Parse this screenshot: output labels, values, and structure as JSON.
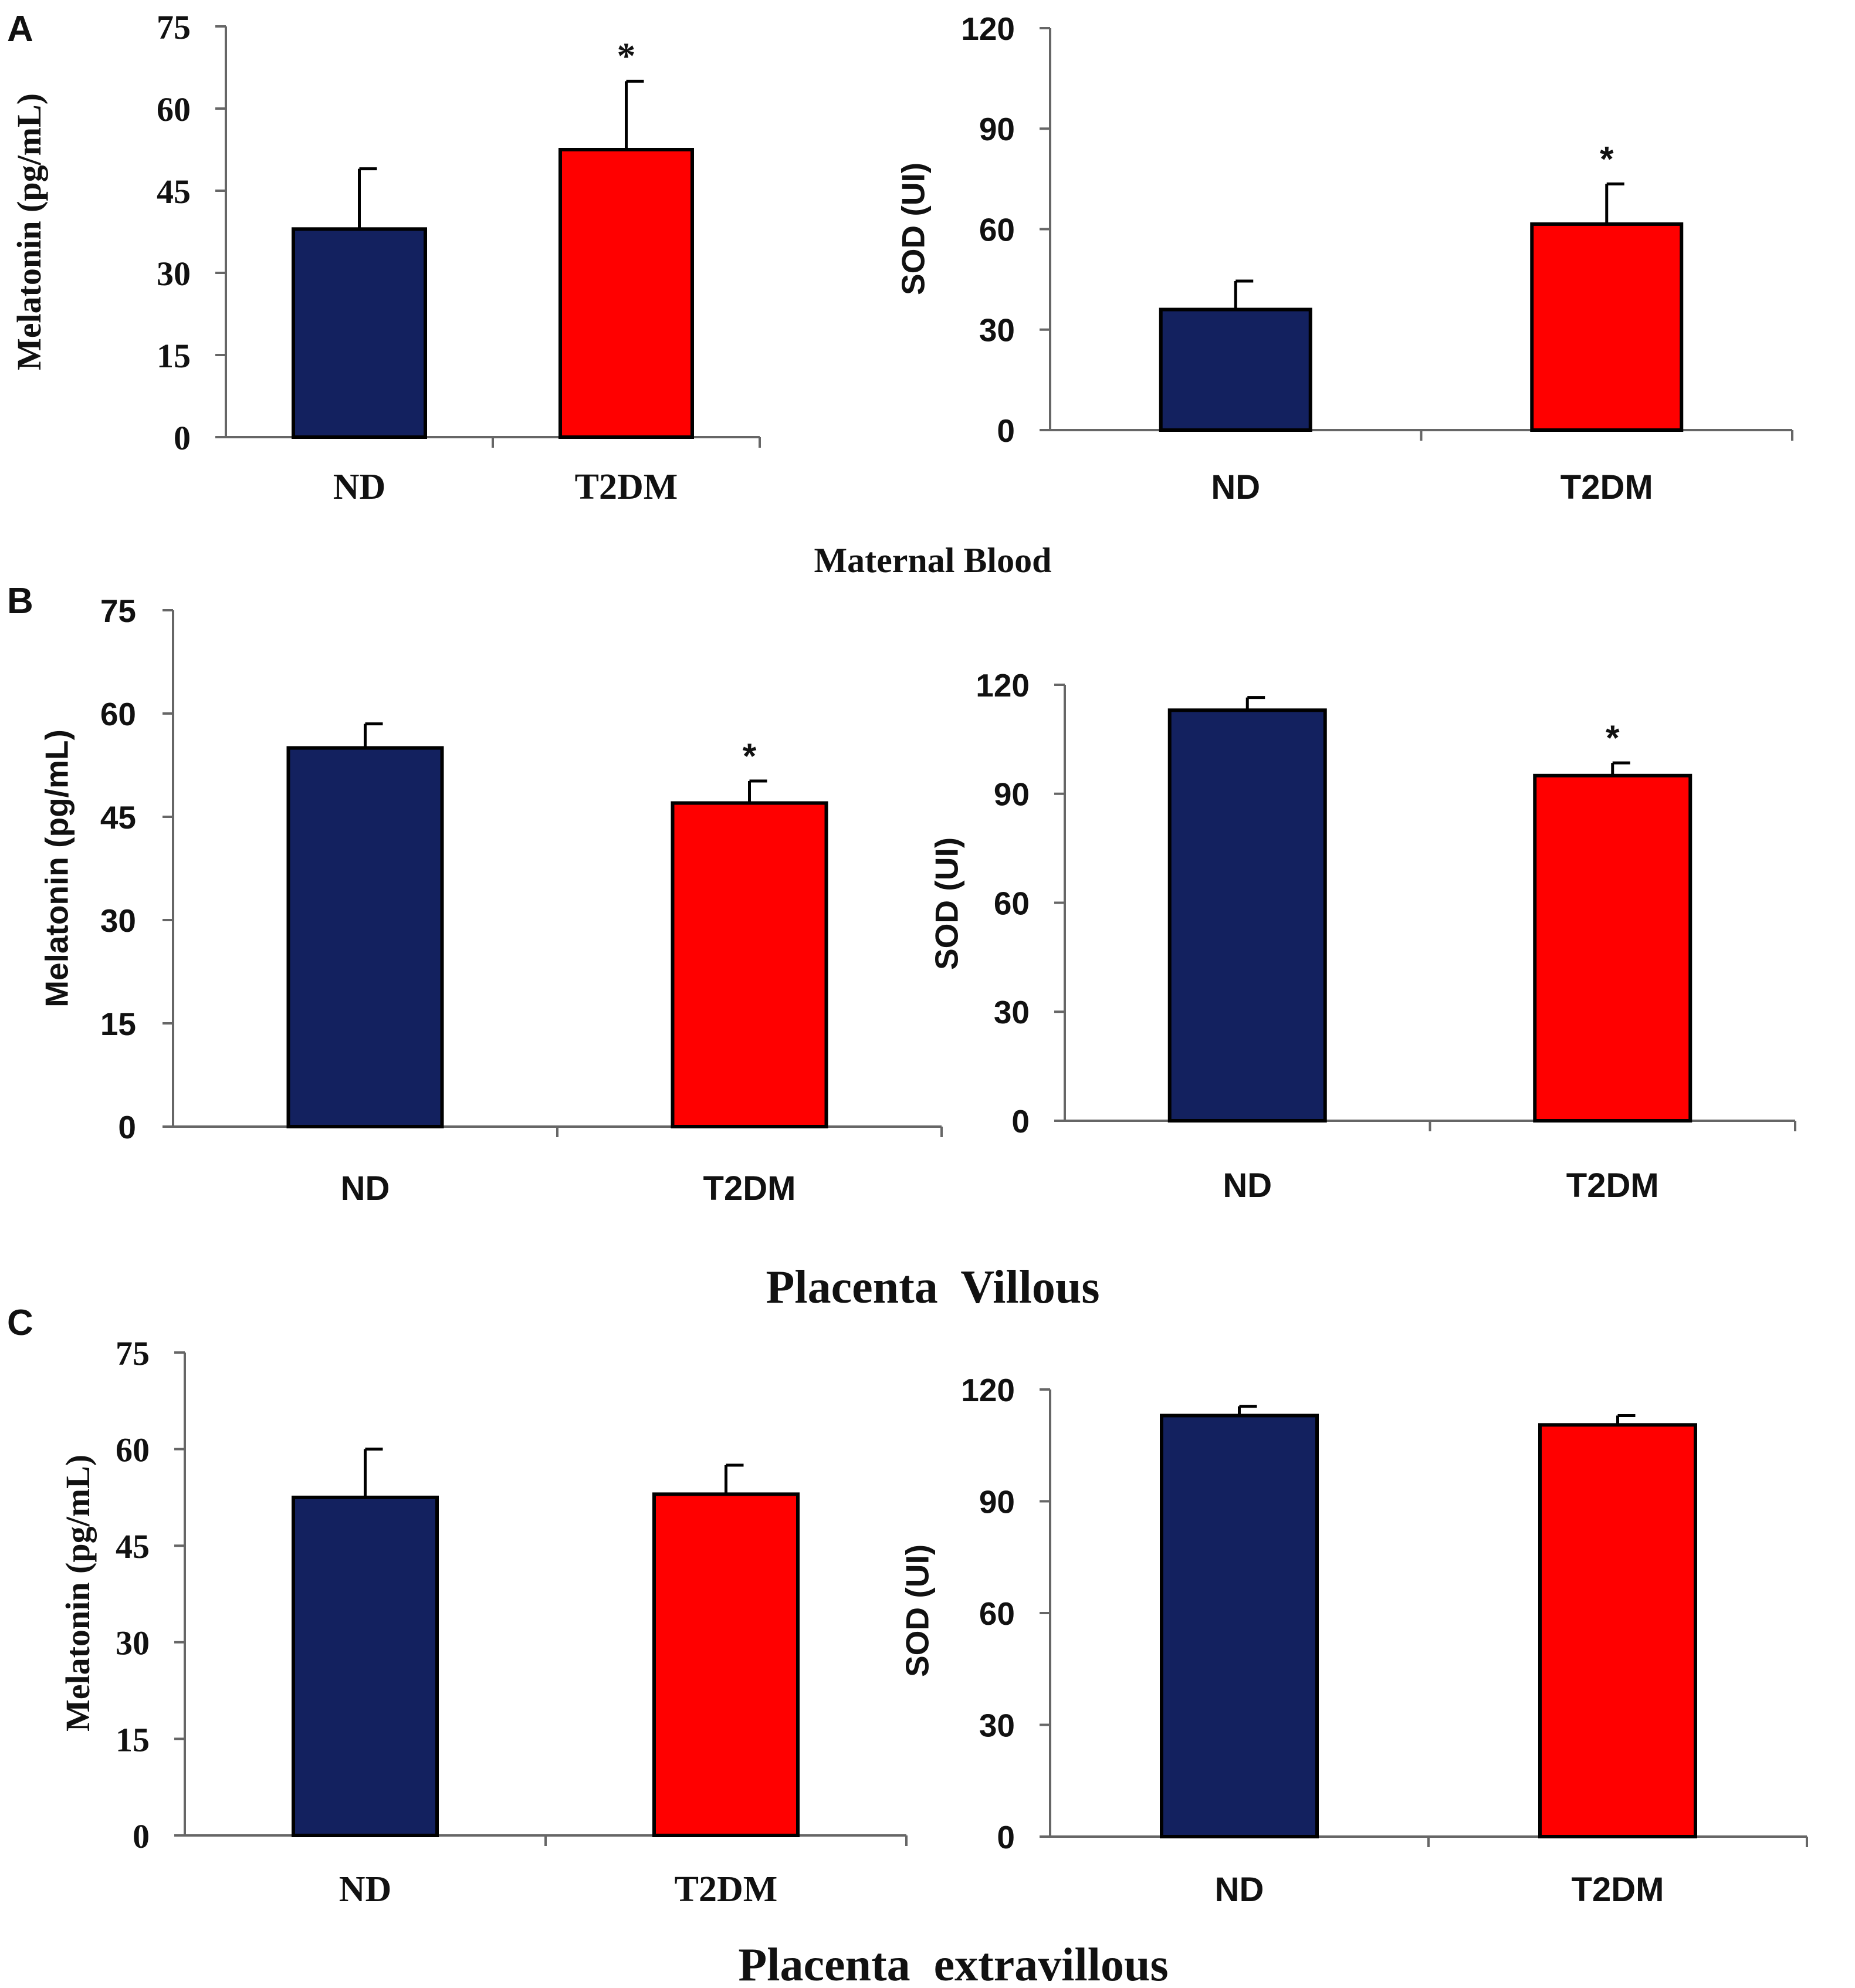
{
  "figure": {
    "colors": {
      "ND": "#13215f",
      "T2DM": "#ff0000",
      "axis": "#666666",
      "text": "#111111"
    },
    "panels": [
      {
        "letter": "A",
        "title": "Maternal Blood"
      },
      {
        "letter": "B",
        "title": "Placenta  Villous"
      },
      {
        "letter": "C",
        "title": "Placenta  extravillous"
      }
    ]
  },
  "chart_data": [
    {
      "type": "bar",
      "panel": "A",
      "font": "serif",
      "ylabel": "Melatonin  (pg/mL)",
      "ylim": [
        0,
        75
      ],
      "yticks": [
        0,
        15,
        30,
        45,
        60,
        75
      ],
      "categories": [
        "ND",
        "T2DM"
      ],
      "values": [
        38,
        52.5
      ],
      "errors": [
        11,
        12.5
      ],
      "significance": [
        "",
        "*"
      ]
    },
    {
      "type": "bar",
      "panel": "A",
      "font": "sans",
      "ylabel": "SOD (UI)",
      "ylim": [
        0,
        120
      ],
      "yticks": [
        0,
        30,
        60,
        90,
        120
      ],
      "categories": [
        "ND",
        "T2DM"
      ],
      "values": [
        36,
        61.5
      ],
      "errors": [
        8.5,
        12
      ],
      "significance": [
        "",
        "*"
      ]
    },
    {
      "type": "bar",
      "panel": "B",
      "font": "sans",
      "ylabel": "Melatonin  (pg/mL)",
      "ylim": [
        0,
        75
      ],
      "yticks": [
        0,
        15,
        30,
        45,
        60,
        75
      ],
      "categories": [
        "ND",
        "T2DM"
      ],
      "values": [
        55,
        47
      ],
      "errors": [
        3.5,
        3.2
      ],
      "significance": [
        "",
        "*"
      ]
    },
    {
      "type": "bar",
      "panel": "B",
      "font": "sans",
      "ylabel": "SOD (UI)",
      "ylim": [
        0,
        120
      ],
      "yticks": [
        0,
        30,
        60,
        90,
        120
      ],
      "categories": [
        "ND",
        "T2DM"
      ],
      "values": [
        113,
        95
      ],
      "errors": [
        3.5,
        3.5
      ],
      "significance": [
        "",
        "*"
      ]
    },
    {
      "type": "bar",
      "panel": "C",
      "font": "serif",
      "ylabel": "Melatonin  (pg/mL)",
      "ylim": [
        0,
        75
      ],
      "yticks": [
        0,
        15,
        30,
        45,
        60,
        75
      ],
      "categories": [
        "ND",
        "T2DM"
      ],
      "values": [
        52.5,
        53
      ],
      "errors": [
        7.5,
        4.5
      ],
      "significance": [
        "",
        ""
      ]
    },
    {
      "type": "bar",
      "panel": "C",
      "font": "sans",
      "ylabel": "SOD (UI)",
      "ylim": [
        0,
        120
      ],
      "yticks": [
        0,
        30,
        60,
        90,
        120
      ],
      "categories": [
        "ND",
        "T2DM"
      ],
      "values": [
        113,
        110.5
      ],
      "errors": [
        2.5,
        2.5
      ],
      "significance": [
        "",
        ""
      ]
    }
  ]
}
